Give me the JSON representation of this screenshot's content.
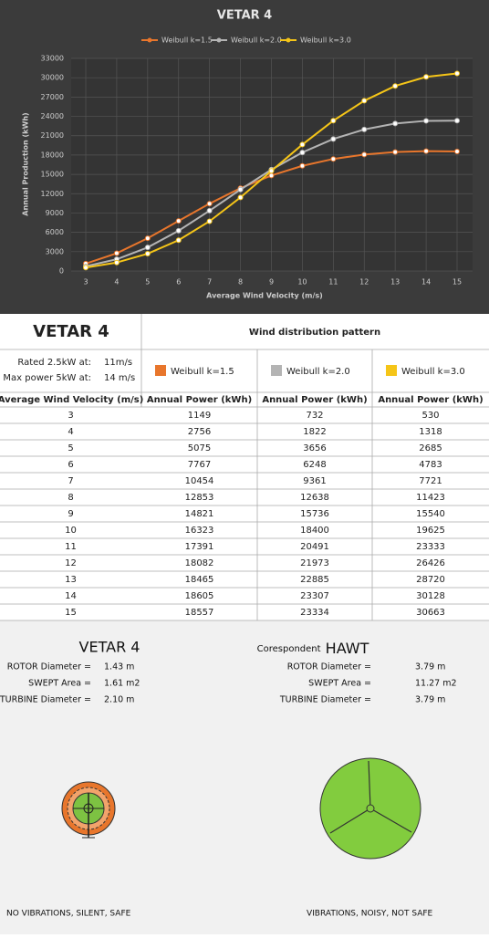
{
  "chart_data": {
    "type": "line",
    "title": "VETAR 4",
    "x_label": "Average Wind Velocity (m/s)",
    "y_label": "Annual Production (kWh)",
    "categories": [
      "3",
      "4",
      "5",
      "6",
      "7",
      "8",
      "9",
      "10",
      "11",
      "12",
      "13",
      "14",
      "15"
    ],
    "series": [
      {
        "name": "Weibull k=1.5",
        "color": "#e8762c",
        "values": [
          1149,
          2756,
          5075,
          7767,
          10454,
          12853,
          14821,
          16323,
          17391,
          18082,
          18465,
          18605,
          18557
        ]
      },
      {
        "name": "Weibull k=2.0",
        "color": "#b4b4b4",
        "values": [
          732,
          1822,
          3656,
          6248,
          9361,
          12638,
          15736,
          18400,
          20491,
          21973,
          22885,
          23307,
          23334
        ]
      },
      {
        "name": "Weibull k=3.0",
        "color": "#f5c518",
        "values": [
          530,
          1318,
          2685,
          4783,
          7721,
          11423,
          15540,
          19625,
          23333,
          26426,
          28720,
          30128,
          30663
        ]
      }
    ],
    "ylim": [
      0,
      33000
    ],
    "yticks": [
      0,
      3000,
      6000,
      9000,
      12000,
      15000,
      18000,
      21000,
      24000,
      27000,
      30000,
      33000
    ],
    "grid": true,
    "legend": "top"
  },
  "table": {
    "title": "VETAR 4",
    "group_header": "Wind distribution pattern",
    "rated": {
      "label": "Rated 2.5kW at:",
      "value": "11m/s"
    },
    "max_power": {
      "label": "Max power 5kW at:",
      "value": "14 m/s"
    },
    "columns": [
      "Average Wind Velocity (m/s)",
      "Annual Power (kWh)",
      "Annual Power (kWh)",
      "Annual Power (kWh)"
    ],
    "rows": [
      [
        3,
        1149,
        732,
        530
      ],
      [
        4,
        2756,
        1822,
        1318
      ],
      [
        5,
        5075,
        3656,
        2685
      ],
      [
        6,
        7767,
        6248,
        4783
      ],
      [
        7,
        10454,
        9361,
        7721
      ],
      [
        8,
        12853,
        12638,
        11423
      ],
      [
        9,
        14821,
        15736,
        15540
      ],
      [
        10,
        16323,
        18400,
        19625
      ],
      [
        11,
        17391,
        20491,
        23333
      ],
      [
        12,
        18082,
        21973,
        26426
      ],
      [
        13,
        18465,
        22885,
        28720
      ],
      [
        14,
        18605,
        23307,
        30128
      ],
      [
        15,
        18557,
        23334,
        30663
      ]
    ]
  },
  "comparison": {
    "left": {
      "title": "VETAR 4",
      "specs": [
        [
          "ROTOR Diameter =",
          "1.43 m"
        ],
        [
          "SWEPT Area =",
          "1.61 m2"
        ],
        [
          "TURBINE Diameter =",
          "2.10 m"
        ]
      ],
      "caption": "NO VIBRATIONS, SILENT, SAFE"
    },
    "right": {
      "prefix": "Corespondent",
      "title": "HAWT",
      "specs": [
        [
          "ROTOR Diameter =",
          "3.79 m"
        ],
        [
          "SWEPT Area =",
          "11.27 m2"
        ],
        [
          "TURBINE Diameter =",
          "3.79 m"
        ]
      ],
      "caption": "VIBRATIONS, NOISY, NOT SAFE"
    }
  }
}
